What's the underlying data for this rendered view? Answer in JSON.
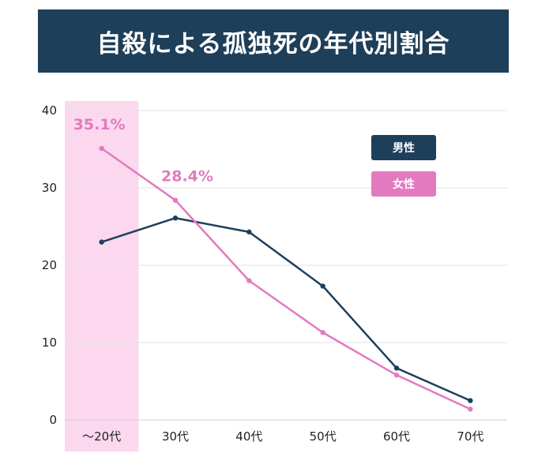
{
  "chart_data": {
    "type": "line",
    "title": "自殺による孤独死の年代別割合",
    "categories": [
      "～20代",
      "30代",
      "40代",
      "50代",
      "60代",
      "70代"
    ],
    "series": [
      {
        "name": "男性",
        "color": "#1e3f5a",
        "values": [
          23.0,
          26.1,
          24.3,
          17.3,
          6.7,
          2.5
        ]
      },
      {
        "name": "女性",
        "color": "#e27ac0",
        "values": [
          35.1,
          28.4,
          18.0,
          11.3,
          5.8,
          1.4
        ]
      }
    ],
    "annotations": [
      {
        "text": "35.1%",
        "category_index": 0,
        "series": "女性"
      },
      {
        "text": "28.4%",
        "category_index": 1,
        "series": "女性"
      }
    ],
    "highlight": {
      "category_index": 0,
      "color": "#fbd8ee"
    },
    "ylim": [
      0,
      40
    ],
    "yticks": [
      0,
      10,
      20,
      30,
      40
    ],
    "grid": true,
    "legend": "top-right"
  }
}
